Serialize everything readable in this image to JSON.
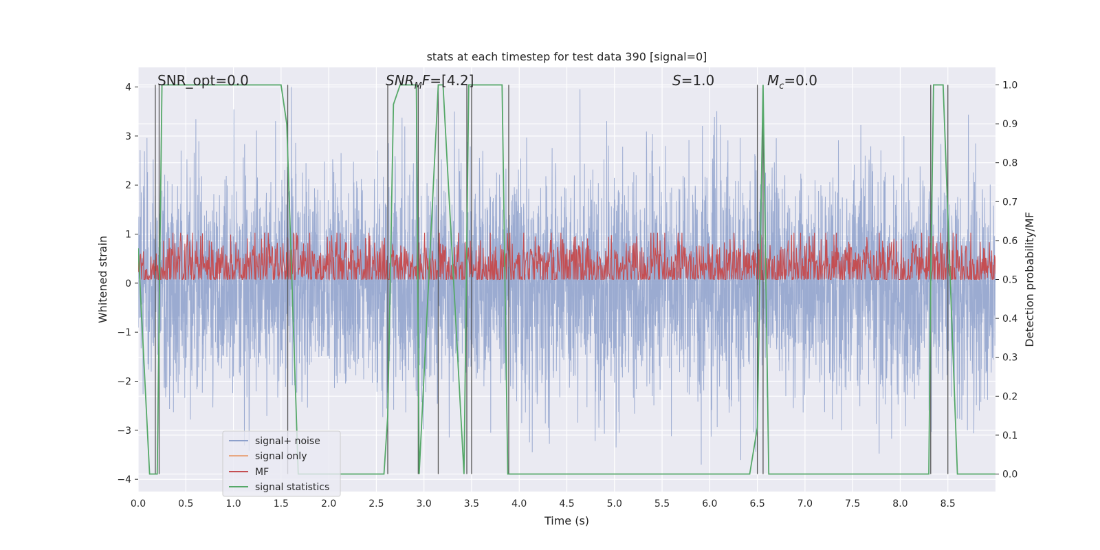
{
  "chart_data": {
    "type": "line",
    "title": "stats at each timestep for test data 390 [signal=0]",
    "xlabel": "Time (s)",
    "ylabel": "Whitened strain",
    "ylabel_right": "Detection probability/MF",
    "xlim": [
      0.0,
      9.0
    ],
    "ylim": [
      -4.25,
      4.4
    ],
    "ylim_right": [
      -0.045,
      1.045
    ],
    "grid": true,
    "legend_position": "lower-left",
    "x_ticks": [
      "0.0",
      "0.5",
      "1.0",
      "1.5",
      "2.0",
      "2.5",
      "3.0",
      "3.5",
      "4.0",
      "4.5",
      "5.0",
      "5.5",
      "6.0",
      "6.5",
      "7.0",
      "7.5",
      "8.0",
      "8.5"
    ],
    "y_ticks": [
      "−4",
      "−3",
      "−2",
      "−1",
      "0",
      "1",
      "2",
      "3",
      "4"
    ],
    "y_ticks_right": [
      "0.0",
      "0.1",
      "0.2",
      "0.3",
      "0.4",
      "0.5",
      "0.6",
      "0.7",
      "0.8",
      "0.9",
      "1.0"
    ],
    "annotations": {
      "snr_opt": "SNR_opt=0.0",
      "snr_mf_prefix": "SNR",
      "snr_mf_sub": "M",
      "snr_mf_mid": "F",
      "snr_mf_value": "=[4.2]",
      "s_label": "S",
      "s_value": "=1.0",
      "mc_label": "M",
      "mc_sub": "c",
      "mc_value": "=0.0"
    },
    "series": [
      {
        "name": "signal+ noise",
        "color": "#8da0cb",
        "description_amplitude": {
          "min": -3.7,
          "max": 4.0
        }
      },
      {
        "name": "signal only",
        "color": "#e8a882",
        "values": []
      },
      {
        "name": "MF",
        "color": "#c44e52",
        "description_amplitude": {
          "min": 0.0,
          "max": 1.0
        }
      },
      {
        "name": "signal statistics",
        "color": "#55a868",
        "axis": "right",
        "x": [
          0.0,
          0.12,
          0.18,
          0.2,
          0.25,
          1.5,
          1.56,
          1.68,
          2.58,
          2.62,
          2.68,
          2.75,
          2.92,
          2.95,
          3.15,
          3.2,
          3.42,
          3.47,
          3.52,
          3.58,
          3.82,
          3.88,
          3.95,
          6.42,
          6.5,
          6.56,
          6.62,
          8.3,
          8.32,
          8.35,
          8.45,
          8.6,
          9.0
        ],
        "y": [
          0.58,
          0.0,
          0.0,
          0.0,
          1.0,
          1.0,
          0.9,
          0.0,
          0.0,
          0.15,
          0.95,
          1.0,
          1.0,
          0.0,
          1.0,
          1.0,
          0.0,
          1.0,
          1.0,
          1.0,
          1.0,
          0.0,
          0.0,
          0.0,
          0.12,
          1.0,
          0.0,
          0.0,
          0.5,
          1.0,
          1.0,
          0.0,
          0.0
        ]
      }
    ],
    "vertical_markers": [
      0.18,
      0.22,
      1.57,
      2.62,
      2.94,
      3.15,
      3.45,
      3.5,
      3.89,
      6.5,
      6.56,
      8.32,
      8.5
    ]
  }
}
